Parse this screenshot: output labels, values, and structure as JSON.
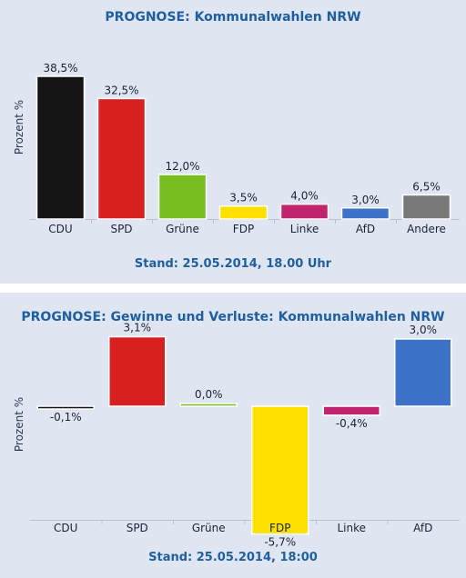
{
  "chart_data": [
    {
      "type": "bar",
      "title": "PROGNOSE: Kommunalwahlen NRW",
      "ylabel": "Prozent %",
      "footer": "Stand: 25.05.2014, 18.00 Uhr",
      "categories": [
        "CDU",
        "SPD",
        "Grüne",
        "FDP",
        "Linke",
        "AfD",
        "Andere"
      ],
      "values": [
        38.5,
        32.5,
        12.0,
        3.5,
        4.0,
        3.0,
        6.5
      ],
      "value_labels": [
        "38,5%",
        "32,5%",
        "12,0%",
        "3,5%",
        "4,0%",
        "3,0%",
        "6,5%"
      ],
      "colors": [
        "#141414",
        "#d92020",
        "#78be1e",
        "#ffe000",
        "#c0246e",
        "#3c73c8",
        "#787878"
      ],
      "ylim": [
        0,
        40
      ],
      "grid": false
    },
    {
      "type": "bar",
      "title": "PROGNOSE: Gewinne und Verluste: Kommunalwahlen NRW",
      "ylabel": "Prozent %",
      "footer": "Stand: 25.05.2014, 18:00",
      "categories": [
        "CDU",
        "SPD",
        "Grüne",
        "FDP",
        "Linke",
        "AfD"
      ],
      "values": [
        -0.1,
        3.1,
        0.0,
        -5.7,
        -0.4,
        3.0
      ],
      "value_labels": [
        "-0,1%",
        "3,1%",
        "0,0%",
        "-5,7%",
        "-0,4%",
        "3,0%"
      ],
      "colors": [
        "#141414",
        "#d92020",
        "#78be1e",
        "#ffe000",
        "#c0246e",
        "#3c73c8"
      ],
      "ylim": [
        -6,
        3.5
      ],
      "grid": false
    }
  ]
}
